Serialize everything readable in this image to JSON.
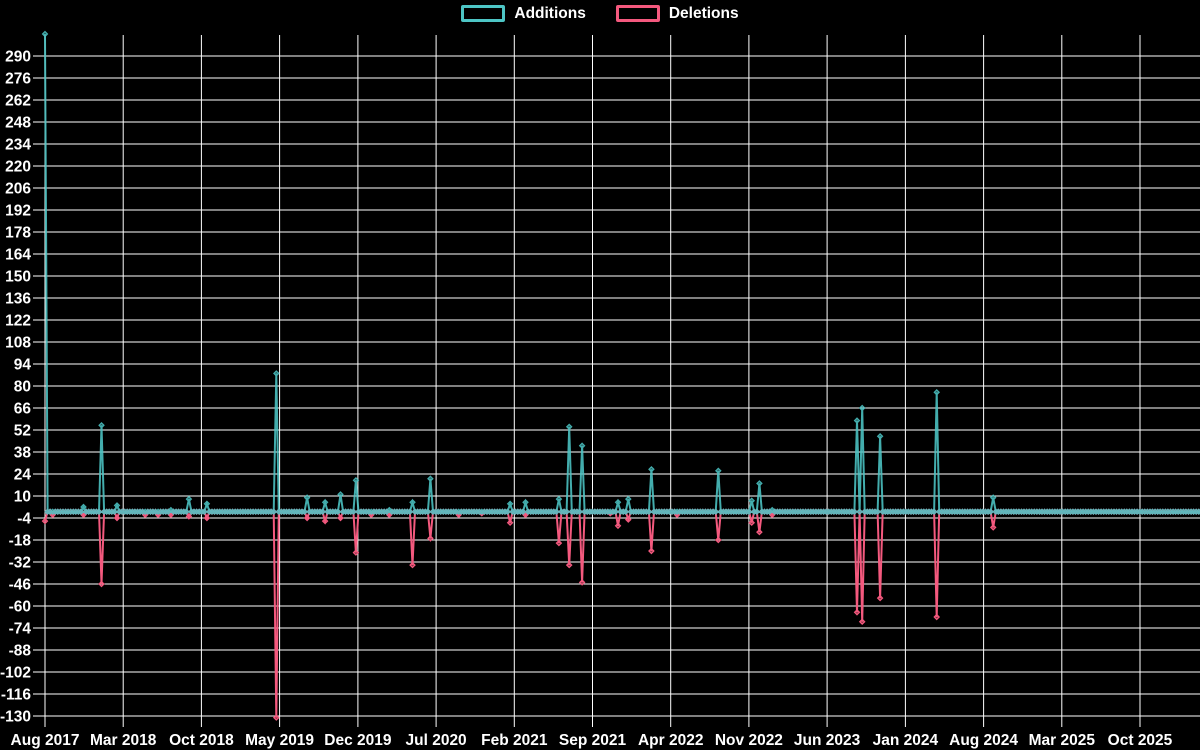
{
  "page": {
    "background_color": "#000000",
    "text_color": "#ffffff",
    "grid_color": "#ffffff"
  },
  "chart_data": {
    "type": "line",
    "legend_position": "top",
    "grid": true,
    "background": "#000000",
    "series": [
      {
        "name": "Additions",
        "color": "#4dc5c5"
      },
      {
        "name": "Deletions",
        "color": "#f4597e"
      }
    ],
    "x_axis": {
      "tick_labels": [
        "Aug 2017",
        "Mar 2018",
        "Oct 2018",
        "May 2019",
        "Dec 2019",
        "Jul 2020",
        "Feb 2021",
        "Sep 2021",
        "Apr 2022",
        "Nov 2022",
        "Jun 2023",
        "Jan 2024",
        "Aug 2024",
        "Mar 2025",
        "Oct 2025"
      ],
      "range": [
        "2017-08",
        "2026-03"
      ],
      "sampling": "weekly"
    },
    "y_axis": {
      "tick_labels": [
        290,
        276,
        262,
        248,
        234,
        220,
        206,
        192,
        178,
        164,
        150,
        136,
        122,
        108,
        94,
        80,
        66,
        52,
        38,
        24,
        10,
        -4,
        -18,
        -32,
        -46,
        -60,
        -74,
        -88,
        -102,
        -116,
        -130
      ],
      "ylim": [
        -130,
        290
      ],
      "tick_step": 14
    },
    "baseline_value": 0,
    "note": "weeks not listed in events have additions 0 and deletions 0",
    "events": [
      {
        "date": "2017-08-04",
        "additions": 304,
        "deletions": -6
      },
      {
        "date": "2017-08-23",
        "additions": 0,
        "deletions": -2
      },
      {
        "date": "2017-11-12",
        "additions": 3,
        "deletions": -2
      },
      {
        "date": "2018-01-01",
        "additions": 55,
        "deletions": -46
      },
      {
        "date": "2018-02-11",
        "additions": 4,
        "deletions": -4
      },
      {
        "date": "2018-04-29",
        "additions": 0,
        "deletions": -2
      },
      {
        "date": "2018-06-06",
        "additions": 0,
        "deletions": -2
      },
      {
        "date": "2018-07-06",
        "additions": 1,
        "deletions": -2
      },
      {
        "date": "2018-08-25",
        "additions": 8,
        "deletions": -3
      },
      {
        "date": "2018-10-15",
        "additions": 5,
        "deletions": -4
      },
      {
        "date": "2019-04-24",
        "additions": 88,
        "deletions": -131
      },
      {
        "date": "2019-07-15",
        "additions": 9,
        "deletions": -4
      },
      {
        "date": "2019-09-03",
        "additions": 6,
        "deletions": -6
      },
      {
        "date": "2019-10-16",
        "additions": 11,
        "deletions": -4
      },
      {
        "date": "2019-11-29",
        "additions": 20,
        "deletions": -26
      },
      {
        "date": "2020-01-09",
        "additions": 0,
        "deletions": -2
      },
      {
        "date": "2020-02-27",
        "additions": 1,
        "deletions": -2
      },
      {
        "date": "2020-04-30",
        "additions": 6,
        "deletions": -34
      },
      {
        "date": "2020-06-15",
        "additions": 21,
        "deletions": -17
      },
      {
        "date": "2020-08-30",
        "additions": 0,
        "deletions": -2
      },
      {
        "date": "2020-11-06",
        "additions": 0,
        "deletions": -1
      },
      {
        "date": "2021-01-22",
        "additions": 5,
        "deletions": -7
      },
      {
        "date": "2021-03-01",
        "additions": 6,
        "deletions": -2
      },
      {
        "date": "2021-05-29",
        "additions": 8,
        "deletions": -20
      },
      {
        "date": "2021-06-26",
        "additions": 54,
        "deletions": -34
      },
      {
        "date": "2021-07-31",
        "additions": 42,
        "deletions": -45
      },
      {
        "date": "2021-10-17",
        "additions": 0,
        "deletions": -1
      },
      {
        "date": "2021-11-13",
        "additions": 6,
        "deletions": -9
      },
      {
        "date": "2021-12-08",
        "additions": 8,
        "deletions": -5
      },
      {
        "date": "2022-02-06",
        "additions": 27,
        "deletions": -25
      },
      {
        "date": "2022-04-20",
        "additions": 0,
        "deletions": -2
      },
      {
        "date": "2022-08-08",
        "additions": 26,
        "deletions": -18
      },
      {
        "date": "2022-11-07",
        "additions": 7,
        "deletions": -7
      },
      {
        "date": "2022-12-01",
        "additions": 18,
        "deletions": -13
      },
      {
        "date": "2023-01-02",
        "additions": 1,
        "deletions": -2
      },
      {
        "date": "2023-08-22",
        "additions": 58,
        "deletions": -64
      },
      {
        "date": "2023-09-02",
        "additions": 66,
        "deletions": -70
      },
      {
        "date": "2023-10-21",
        "additions": 48,
        "deletions": -55
      },
      {
        "date": "2024-03-23",
        "additions": 76,
        "deletions": -67
      },
      {
        "date": "2024-08-27",
        "additions": 9,
        "deletions": -10
      }
    ]
  }
}
